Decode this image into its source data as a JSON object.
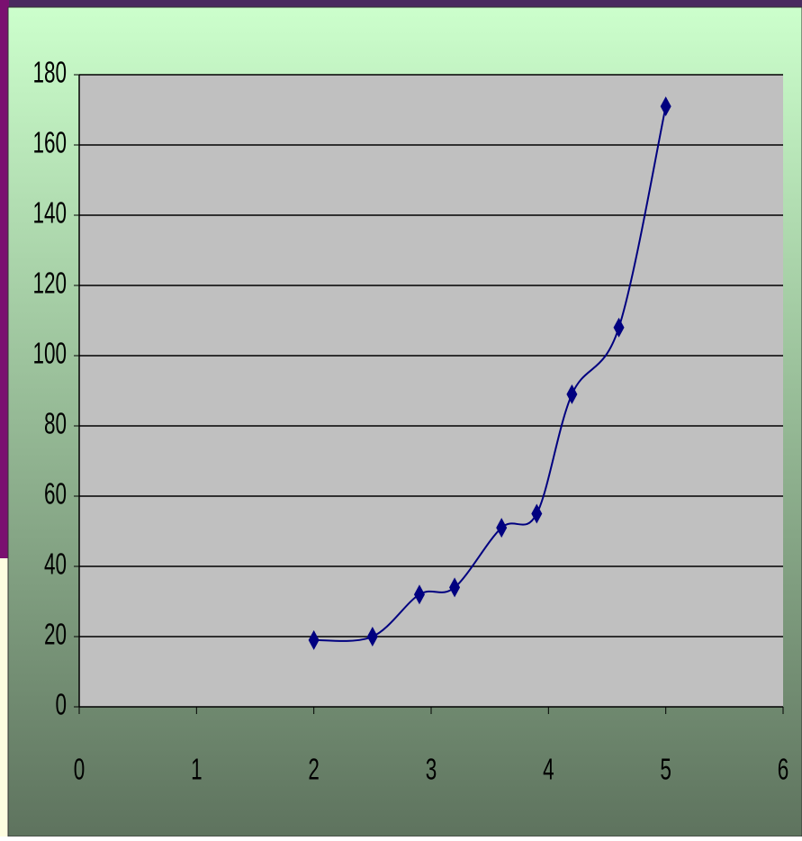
{
  "chart_data": {
    "type": "line",
    "smooth": true,
    "marker": "diamond",
    "x": [
      2,
      2.5,
      2.9,
      3.2,
      3.6,
      3.9,
      4.2,
      4.6,
      5
    ],
    "values": [
      19,
      20,
      32,
      34,
      51,
      55,
      89,
      108,
      171
    ],
    "color": "#000080",
    "xlim": [
      0,
      6
    ],
    "xticks": [
      0,
      1,
      2,
      3,
      4,
      5,
      6
    ],
    "ylim": [
      0,
      180
    ],
    "yticks": [
      0,
      20,
      40,
      60,
      80,
      100,
      120,
      140,
      160,
      180
    ],
    "grid": true
  }
}
